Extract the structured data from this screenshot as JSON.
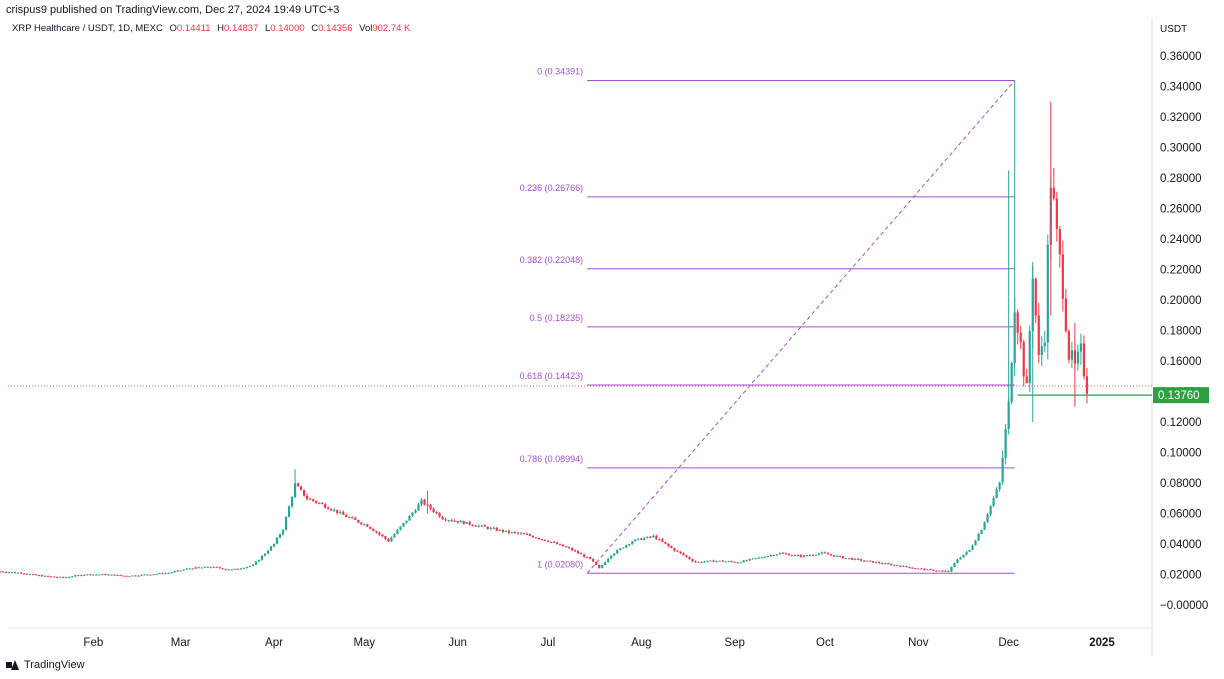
{
  "publish_line": "crispus9 published on TradingView.com, Dec 27, 2024 19:49 UTC+3",
  "legend": {
    "symbol": "XRP Healthcare / USDT, 1D, MEXC",
    "open_label": "O",
    "open": "0.14411",
    "high_label": "H",
    "high": "0.14837",
    "low_label": "L",
    "low": "0.14000",
    "close_label": "C",
    "close": "0.14356",
    "vol_label": "Vol",
    "vol": "902.74 K"
  },
  "currency": "USDT",
  "footer": {
    "brand": "TradingView",
    "logo_icon": "tradingview-logo-icon"
  },
  "colors": {
    "up": "#26a69a",
    "down": "#f23645",
    "fib": "#a64fd1",
    "price_line": "#2ea043",
    "dotted": "#f23645"
  },
  "chart_data": {
    "type": "candlestick",
    "title": "XRP Healthcare / USDT, 1D, MEXC",
    "x_ticks": [
      "Feb",
      "Mar",
      "Apr",
      "May",
      "Jun",
      "Jul",
      "Aug",
      "Sep",
      "Oct",
      "Nov",
      "Dec",
      "2025"
    ],
    "y_ticks": [
      "0.36000",
      "0.34000",
      "0.32000",
      "0.30000",
      "0.28000",
      "0.26000",
      "0.24000",
      "0.22000",
      "0.20000",
      "0.18000",
      "0.16000",
      "0.14000",
      "0.12000",
      "0.10000",
      "0.08000",
      "0.06000",
      "0.04000",
      "0.02000",
      "−0.00000"
    ],
    "ylim": [
      -0.004,
      0.372
    ],
    "grid": false,
    "current_price": {
      "label": "0.13760",
      "value": 0.1376
    },
    "fib_levels": [
      {
        "label": "0 (0.34391)",
        "value": 0.34391
      },
      {
        "label": "0.236 (0.26766)",
        "value": 0.26766
      },
      {
        "label": "0.382 (0.22048)",
        "value": 0.22048
      },
      {
        "label": "0.5 (0.18235)",
        "value": 0.18235
      },
      {
        "label": "0.618 (0.14423)",
        "value": 0.14423
      },
      {
        "label": "0.786 (0.08994)",
        "value": 0.08994
      },
      {
        "label": "1 (0.02080)",
        "value": 0.0208
      }
    ],
    "price_path": [
      [
        "2024-01-01",
        0.022
      ],
      [
        "2024-01-08",
        0.021
      ],
      [
        "2024-01-15",
        0.019
      ],
      [
        "2024-01-22",
        0.018
      ],
      [
        "2024-01-29",
        0.02
      ],
      [
        "2024-02-05",
        0.02
      ],
      [
        "2024-02-12",
        0.019
      ],
      [
        "2024-02-19",
        0.02
      ],
      [
        "2024-02-26",
        0.021
      ],
      [
        "2024-03-04",
        0.024
      ],
      [
        "2024-03-11",
        0.025
      ],
      [
        "2024-03-18",
        0.023
      ],
      [
        "2024-03-25",
        0.026
      ],
      [
        "2024-04-01",
        0.04
      ],
      [
        "2024-04-04",
        0.05
      ],
      [
        "2024-04-08",
        0.079
      ],
      [
        "2024-04-12",
        0.07
      ],
      [
        "2024-04-18",
        0.065
      ],
      [
        "2024-04-25",
        0.058
      ],
      [
        "2024-05-02",
        0.052
      ],
      [
        "2024-05-09",
        0.042
      ],
      [
        "2024-05-16",
        0.058
      ],
      [
        "2024-05-20",
        0.068
      ],
      [
        "2024-05-27",
        0.057
      ],
      [
        "2024-06-03",
        0.054
      ],
      [
        "2024-06-10",
        0.051
      ],
      [
        "2024-06-17",
        0.048
      ],
      [
        "2024-06-24",
        0.046
      ],
      [
        "2024-07-01",
        0.042
      ],
      [
        "2024-07-08",
        0.037
      ],
      [
        "2024-07-15",
        0.03
      ],
      [
        "2024-07-18",
        0.024
      ],
      [
        "2024-07-22",
        0.033
      ],
      [
        "2024-07-29",
        0.042
      ],
      [
        "2024-08-05",
        0.045
      ],
      [
        "2024-08-12",
        0.036
      ],
      [
        "2024-08-19",
        0.028
      ],
      [
        "2024-08-26",
        0.029
      ],
      [
        "2024-09-02",
        0.028
      ],
      [
        "2024-09-09",
        0.031
      ],
      [
        "2024-09-16",
        0.034
      ],
      [
        "2024-09-23",
        0.032
      ],
      [
        "2024-09-30",
        0.034
      ],
      [
        "2024-10-07",
        0.031
      ],
      [
        "2024-10-14",
        0.029
      ],
      [
        "2024-10-21",
        0.027
      ],
      [
        "2024-10-28",
        0.025
      ],
      [
        "2024-11-04",
        0.023
      ],
      [
        "2024-11-11",
        0.022
      ],
      [
        "2024-11-14",
        0.03
      ],
      [
        "2024-11-18",
        0.036
      ],
      [
        "2024-11-22",
        0.05
      ],
      [
        "2024-11-25",
        0.065
      ],
      [
        "2024-11-28",
        0.08
      ],
      [
        "2024-12-01",
        0.13
      ],
      [
        "2024-12-03",
        0.2
      ],
      [
        "2024-12-05",
        0.17
      ],
      [
        "2024-12-07",
        0.14
      ],
      [
        "2024-12-09",
        0.22
      ],
      [
        "2024-12-11",
        0.16
      ],
      [
        "2024-12-13",
        0.18
      ],
      [
        "2024-12-15",
        0.28
      ],
      [
        "2024-12-17",
        0.24
      ],
      [
        "2024-12-19",
        0.21
      ],
      [
        "2024-12-21",
        0.165
      ],
      [
        "2024-12-23",
        0.155
      ],
      [
        "2024-12-25",
        0.165
      ],
      [
        "2024-12-27",
        0.1436
      ]
    ],
    "wicks": [
      [
        "2024-04-08",
        0.089,
        0.07
      ],
      [
        "2024-05-22",
        0.075,
        0.06
      ],
      [
        "2024-12-01",
        0.285,
        0.12
      ],
      [
        "2024-12-03",
        0.34391,
        0.15
      ],
      [
        "2024-12-09",
        0.225,
        0.12
      ],
      [
        "2024-12-15",
        0.33,
        0.19
      ],
      [
        "2024-12-23",
        0.185,
        0.13
      ]
    ]
  }
}
